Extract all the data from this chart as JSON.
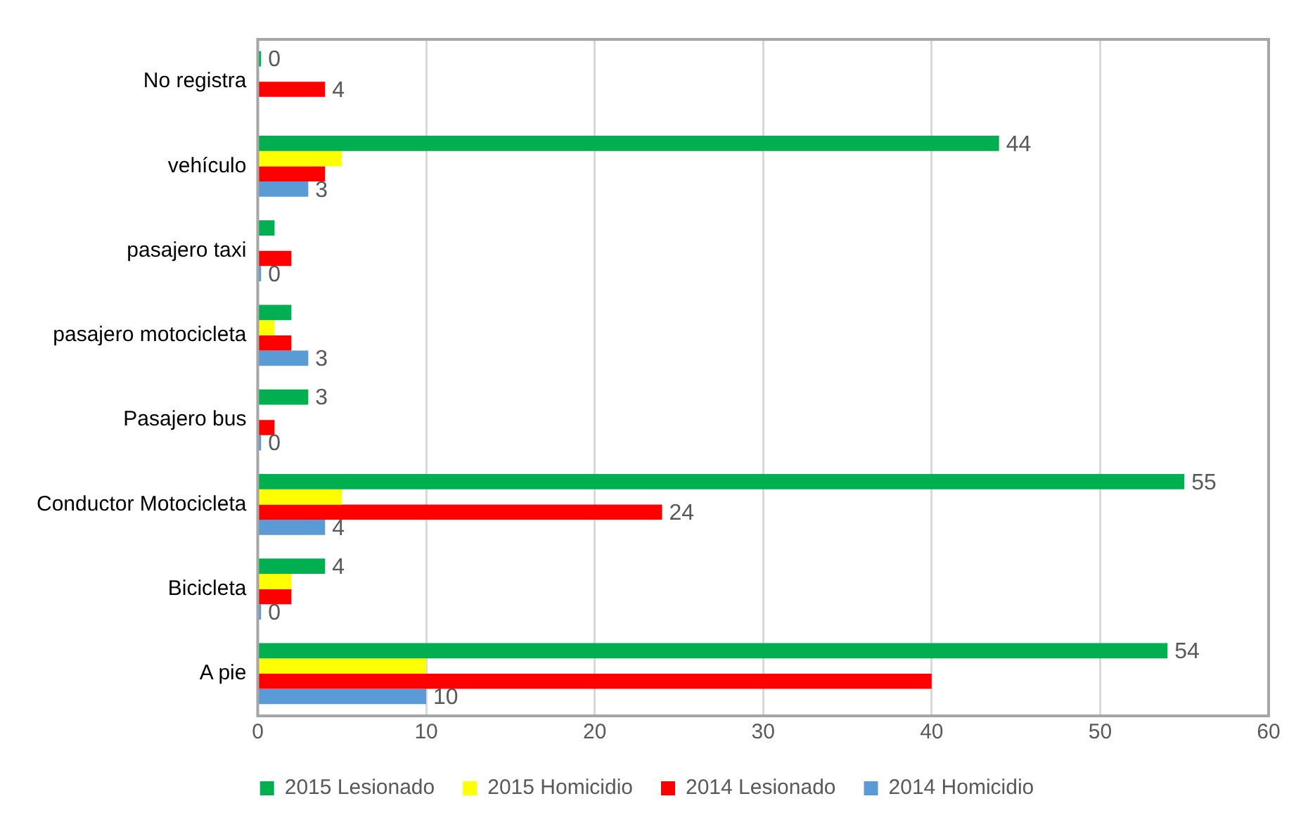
{
  "chart_data": {
    "type": "bar",
    "orientation": "horizontal",
    "categories": [
      "No registra",
      "vehículo",
      "pasajero taxi",
      "pasajero motocicleta",
      "Pasajero bus",
      "Conductor Motocicleta",
      "Bicicleta",
      "A pie"
    ],
    "series": [
      {
        "name": "2015 Lesionado",
        "color": "#00b050",
        "values": [
          0.2,
          44,
          1,
          2,
          3,
          55,
          4,
          54
        ],
        "value_labels": [
          "0",
          "44",
          null,
          null,
          "3",
          "55",
          "4",
          "54"
        ]
      },
      {
        "name": "2015 Homicidio",
        "color": "#ffff00",
        "values": [
          null,
          5,
          null,
          1,
          null,
          5,
          2,
          10
        ],
        "value_labels": [
          null,
          null,
          null,
          null,
          null,
          null,
          null,
          null
        ]
      },
      {
        "name": "2014 Lesionado",
        "color": "#ff0000",
        "values": [
          4,
          4,
          2,
          2,
          1,
          24,
          2,
          40
        ],
        "value_labels": [
          "4",
          null,
          null,
          null,
          null,
          "24",
          null,
          null
        ]
      },
      {
        "name": "2014 Homicidio",
        "color": "#5b9bd5",
        "values": [
          null,
          3,
          0.2,
          3,
          0.2,
          4,
          0.2,
          10
        ],
        "value_labels": [
          null,
          "3",
          "0",
          "3",
          "0",
          "4",
          "0",
          "10"
        ]
      }
    ],
    "xlim": [
      0,
      60
    ],
    "xticks": [
      0,
      10,
      20,
      30,
      40,
      50,
      60
    ],
    "grid": "x",
    "legend": "bottom"
  }
}
